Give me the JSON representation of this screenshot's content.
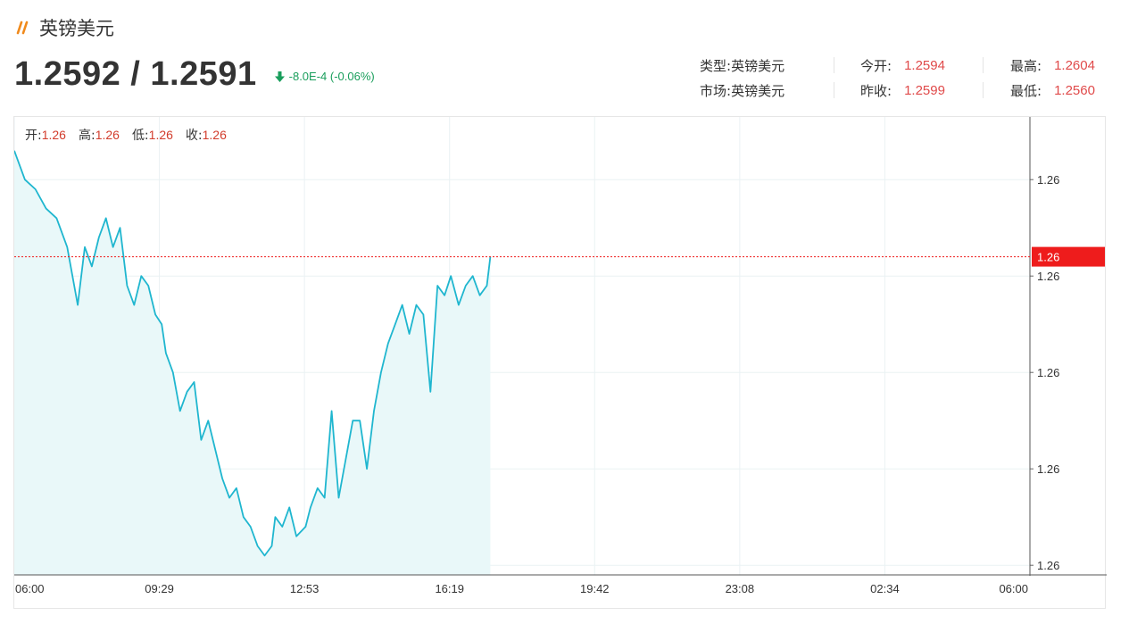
{
  "header": {
    "title": "英镑美元",
    "price": "1.2592 / 1.2591",
    "change": "-8.0E-4 (-0.06%)"
  },
  "stats": {
    "type_label": "类型:",
    "type_value": "英镑美元",
    "market_label": "市场:",
    "market_value": "英镑美元",
    "open_label": "今开:",
    "open_value": "1.2594",
    "prev_close_label": "昨收:",
    "prev_close_value": "1.2599",
    "high_label": "最高:",
    "high_value": "1.2604",
    "low_label": "最低:",
    "low_value": "1.2560"
  },
  "ohlc": {
    "open_label": "开:",
    "open_value": "1.26",
    "high_label": "高:",
    "high_value": "1.26",
    "low_label": "低:",
    "low_value": "1.26",
    "close_label": "收:",
    "close_value": "1.26"
  },
  "colors": {
    "line": "#1fb6cf",
    "area": "#e9f8f9",
    "current_price": "#ee1c1c",
    "up": "#d23c2c",
    "down": "#1a9e5c"
  },
  "chart_data": {
    "type": "area",
    "x_ticks": [
      "06:00",
      "09:29",
      "12:53",
      "16:19",
      "19:42",
      "23:08",
      "02:34",
      "06:00"
    ],
    "y_ticks": [
      "1.26",
      "1.26",
      "1.26",
      "1.26",
      "1.26"
    ],
    "y_tick_values": [
      1.26,
      1.259,
      1.258,
      1.257,
      1.256
    ],
    "ylim": [
      1.2559,
      1.26065
    ],
    "current_price_label": "1.26",
    "current_price": 1.2592,
    "grid": true,
    "x": [
      "06:00",
      "06:15",
      "06:30",
      "06:45",
      "07:00",
      "07:15",
      "07:30",
      "07:40",
      "07:50",
      "08:00",
      "08:10",
      "08:20",
      "08:30",
      "08:40",
      "08:50",
      "09:00",
      "09:10",
      "09:20",
      "09:29",
      "09:35",
      "09:45",
      "09:55",
      "10:05",
      "10:15",
      "10:25",
      "10:35",
      "10:45",
      "10:55",
      "11:05",
      "11:15",
      "11:25",
      "11:35",
      "11:45",
      "11:55",
      "12:05",
      "12:10",
      "12:20",
      "12:30",
      "12:40",
      "12:53",
      "13:00",
      "13:10",
      "13:20",
      "13:30",
      "13:40",
      "13:50",
      "14:00",
      "14:10",
      "14:20",
      "14:30",
      "14:40",
      "14:50",
      "15:00",
      "15:10",
      "15:20",
      "15:30",
      "15:40",
      "15:50",
      "16:00",
      "16:10",
      "16:19",
      "16:30",
      "16:40",
      "16:50",
      "17:00",
      "17:10",
      "17:15"
    ],
    "values": [
      1.2603,
      1.26,
      1.2599,
      1.2597,
      1.2596,
      1.2593,
      1.2587,
      1.2593,
      1.2591,
      1.2594,
      1.2596,
      1.2593,
      1.2595,
      1.2589,
      1.2587,
      1.259,
      1.2589,
      1.2586,
      1.2585,
      1.2582,
      1.258,
      1.2576,
      1.2578,
      1.2579,
      1.2573,
      1.2575,
      1.2572,
      1.2569,
      1.2567,
      1.2568,
      1.2565,
      1.2564,
      1.2562,
      1.2561,
      1.2562,
      1.2565,
      1.2564,
      1.2566,
      1.2563,
      1.2564,
      1.2566,
      1.2568,
      1.2567,
      1.2576,
      1.2567,
      1.2571,
      1.2575,
      1.2575,
      1.257,
      1.2576,
      1.258,
      1.2583,
      1.2585,
      1.2587,
      1.2584,
      1.2587,
      1.2586,
      1.2578,
      1.2589,
      1.2588,
      1.259,
      1.2587,
      1.2589,
      1.259,
      1.2588,
      1.2589,
      1.2592
    ]
  }
}
